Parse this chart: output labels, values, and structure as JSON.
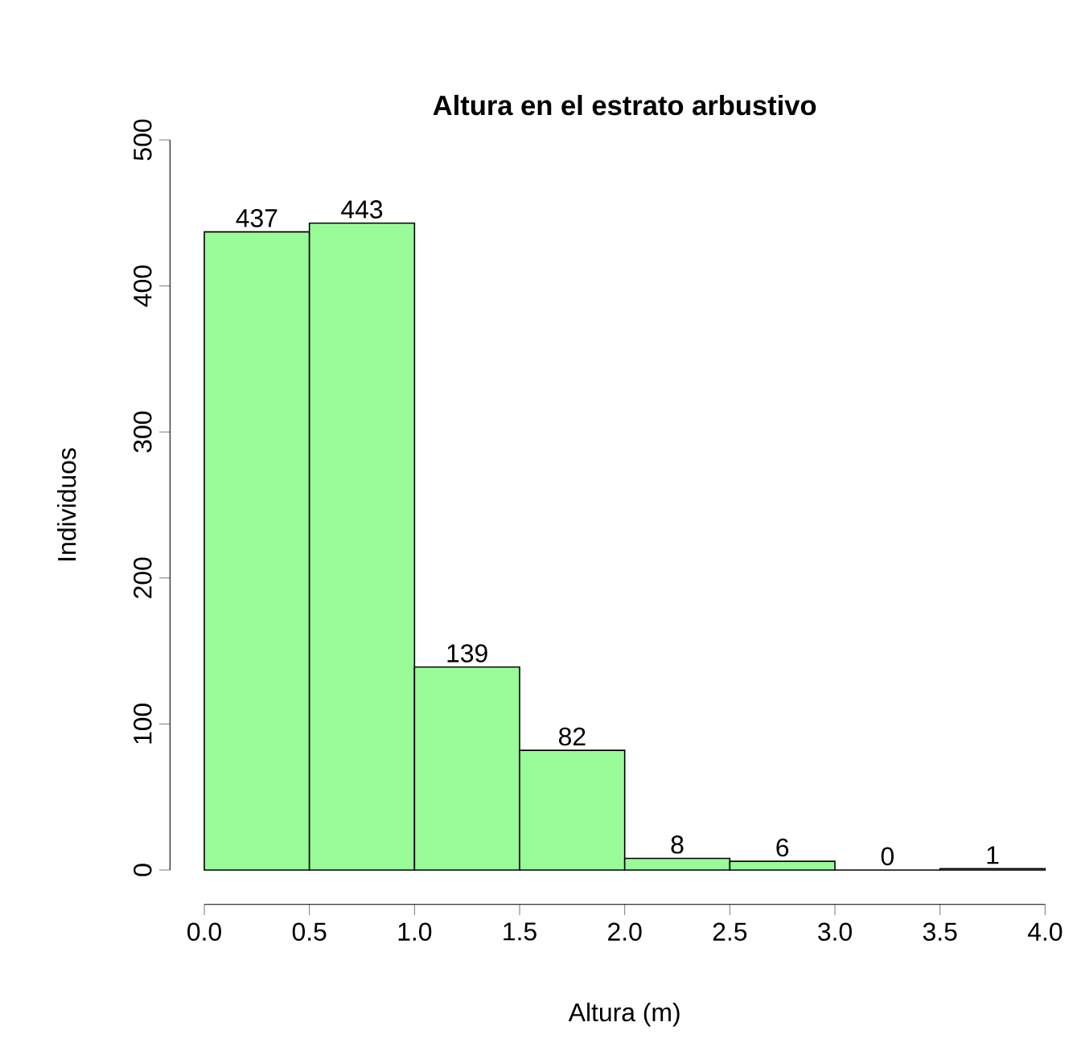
{
  "chart_data": {
    "type": "histogram",
    "title": "Altura en el estrato arbustivo",
    "xlabel": "Altura (m)",
    "ylabel": "Individuos",
    "bins": [
      0,
      0.5,
      1,
      1.5,
      2,
      2.5,
      3,
      3.5,
      4
    ],
    "values": [
      437,
      443,
      139,
      82,
      8,
      6,
      0,
      1
    ],
    "color": "#98fb98",
    "data_labels": true,
    "xlim": [
      0,
      4
    ],
    "ylim": [
      0,
      500
    ],
    "xticks": [
      {
        "value": 0,
        "label": "0.0"
      },
      {
        "value": 0.5,
        "label": "0.5"
      },
      {
        "value": 1,
        "label": "1.0"
      },
      {
        "value": 1.5,
        "label": "1.5"
      },
      {
        "value": 2,
        "label": "2.0"
      },
      {
        "value": 2.5,
        "label": "2.5"
      },
      {
        "value": 3,
        "label": "3.0"
      },
      {
        "value": 3.5,
        "label": "3.5"
      },
      {
        "value": 4,
        "label": "4.0"
      }
    ],
    "yticks": [
      0,
      100,
      200,
      300,
      400,
      500
    ]
  }
}
